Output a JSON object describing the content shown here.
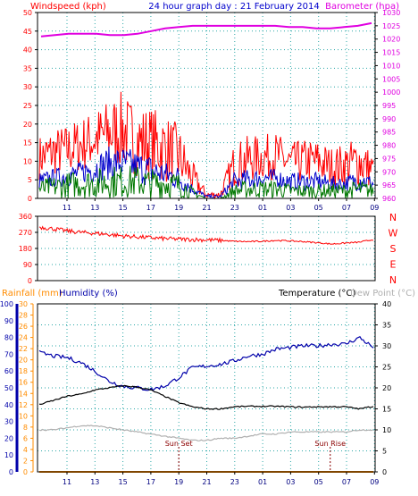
{
  "chart_data": [
    {
      "type": "line",
      "title": "24 hour graph day : 21 February 2014",
      "left_axis_label": "Windspeed (kph)",
      "right_axis_label": "Barometer (hpa)",
      "x_ticks": [
        "11",
        "13",
        "15",
        "17",
        "19",
        "21",
        "23",
        "01",
        "03",
        "05",
        "07",
        "09"
      ],
      "left_ticks": [
        0,
        5,
        10,
        15,
        20,
        25,
        30,
        35,
        40,
        45,
        50
      ],
      "right_ticks": [
        960,
        965,
        970,
        975,
        980,
        985,
        990,
        995,
        1000,
        1005,
        1010,
        1015,
        1020,
        1025,
        1030
      ],
      "left_range": [
        0,
        50
      ],
      "right_range": [
        960,
        1030
      ],
      "grid": true,
      "series": [
        {
          "name": "Windspeed (kph)",
          "axis": "left",
          "color": "#ff0000",
          "style": "band",
          "low": [
            5,
            6,
            6,
            7,
            8,
            8,
            8,
            6,
            5,
            4,
            3,
            1,
            0,
            0,
            3,
            4,
            5,
            5,
            4,
            4,
            4,
            3,
            3,
            3,
            3
          ],
          "high": [
            17,
            19,
            20,
            22,
            24,
            27,
            29,
            25,
            25,
            23,
            20,
            10,
            2,
            2,
            15,
            17,
            17,
            18,
            15,
            16,
            16,
            14,
            15,
            17,
            12
          ]
        },
        {
          "axis": "left",
          "color": "#0000cc",
          "style": "band",
          "low": [
            2,
            3,
            3,
            4,
            4,
            5,
            5,
            4,
            3,
            3,
            2,
            1,
            0,
            0,
            2,
            2,
            3,
            3,
            2,
            2,
            2,
            2,
            2,
            2,
            2
          ],
          "high": [
            7,
            8,
            9,
            10,
            12,
            14,
            14,
            13,
            12,
            10,
            9,
            4,
            1,
            1,
            7,
            8,
            8,
            8,
            7,
            7,
            7,
            6,
            6,
            8,
            6
          ]
        },
        {
          "axis": "left",
          "color": "#007700",
          "style": "band",
          "low": [
            0,
            0,
            0,
            0,
            0,
            0,
            0,
            0,
            0,
            0,
            0,
            0,
            0,
            0,
            0,
            0,
            0,
            0,
            0,
            0,
            0,
            0,
            0,
            0,
            0
          ],
          "high": [
            5,
            6,
            7,
            8,
            8,
            9,
            9,
            9,
            8,
            8,
            7,
            3,
            0,
            0,
            4,
            5,
            5,
            5,
            4,
            4,
            4,
            4,
            4,
            5,
            4
          ]
        },
        {
          "name": "Barometer (hpa)",
          "axis": "right",
          "color": "#e000e0",
          "style": "line",
          "values": [
            1021,
            1021.5,
            1022,
            1022,
            1022,
            1021.5,
            1021.5,
            1022,
            1023,
            1024,
            1024.5,
            1025,
            1025,
            1025,
            1025,
            1025,
            1025,
            1025,
            1024.5,
            1024.5,
            1024,
            1024,
            1024.5,
            1025,
            1026
          ]
        }
      ]
    },
    {
      "type": "scatter",
      "title": "",
      "x_ticks": [
        "11",
        "13",
        "15",
        "17",
        "19",
        "21",
        "23",
        "01",
        "03",
        "05",
        "07",
        "09"
      ],
      "left_ticks": [
        0,
        90,
        180,
        270,
        360
      ],
      "right_letters": [
        "N",
        "W",
        "S",
        "E",
        "N"
      ],
      "left_range": [
        0,
        360
      ],
      "grid": true,
      "series": [
        {
          "axis": "left",
          "color": "#ff0000",
          "style": "line",
          "values": [
            300,
            290,
            278,
            270,
            265,
            258,
            250,
            245,
            240,
            235,
            232,
            230,
            228,
            225,
            220,
            218,
            220,
            225,
            222,
            218,
            212,
            205,
            210,
            215,
            230
          ]
        }
      ]
    },
    {
      "type": "line",
      "rain_label": "Rainfall (mm)",
      "humidity_label": "Humidity (%)",
      "temperature_label": "Temperature (°C)",
      "dewpoint_label": "Dew Point (°C)",
      "x_ticks": [
        "11",
        "13",
        "15",
        "17",
        "19",
        "21",
        "23",
        "01",
        "03",
        "05",
        "07",
        "09"
      ],
      "rain_ticks": [
        0,
        2,
        4,
        6,
        8,
        10,
        12,
        14,
        16,
        18,
        20,
        22,
        24,
        26,
        28,
        30
      ],
      "humidity_ticks": [
        0,
        10,
        20,
        30,
        40,
        50,
        60,
        70,
        80,
        90,
        100
      ],
      "temperature_ticks": [
        0,
        5,
        10,
        15,
        20,
        25,
        30,
        35,
        40
      ],
      "rain_range": [
        0,
        30
      ],
      "humidity_range": [
        0,
        100
      ],
      "temperature_range": [
        0,
        40
      ],
      "grid": true,
      "annotations": [
        {
          "label": "Sun Set",
          "x_value": 20.0
        },
        {
          "label": "Sun Rise",
          "x_value": 31.0
        }
      ],
      "series": [
        {
          "name": "Humidity (%)",
          "axis": "humidity",
          "color": "#0000aa",
          "values": [
            71,
            69,
            68,
            65,
            60,
            54,
            51,
            50,
            49,
            51,
            56,
            62,
            63,
            64,
            66,
            69,
            70,
            73,
            74,
            75,
            75,
            76,
            76,
            80,
            74
          ]
        },
        {
          "name": "Temperature (°C)",
          "axis": "temperature",
          "color": "#000000",
          "values": [
            16,
            17,
            18,
            18.5,
            19.5,
            20,
            20.5,
            20.2,
            19.5,
            18,
            16.5,
            15.5,
            15,
            15,
            15.5,
            15.6,
            15.6,
            15.6,
            15.5,
            15.4,
            15.5,
            15.5,
            15.5,
            15,
            15.6
          ]
        },
        {
          "name": "Dew Point (°C)",
          "axis": "temperature",
          "color": "#b0b0b0",
          "values": [
            10,
            10,
            10.5,
            11,
            11,
            10.5,
            10,
            9.5,
            9,
            8.5,
            8,
            7.5,
            7.5,
            8,
            8,
            8.5,
            9,
            9,
            9.5,
            9.5,
            9.5,
            9.5,
            9.5,
            10,
            10
          ]
        },
        {
          "name": "Rainfall (mm)",
          "axis": "rain",
          "color": "#ff8c00",
          "values": [
            0,
            0,
            0,
            0,
            0,
            0,
            0,
            0,
            0,
            0,
            0,
            0,
            0,
            0,
            0,
            0,
            0,
            0,
            0,
            0,
            0,
            0,
            0,
            0,
            0
          ]
        }
      ]
    }
  ]
}
